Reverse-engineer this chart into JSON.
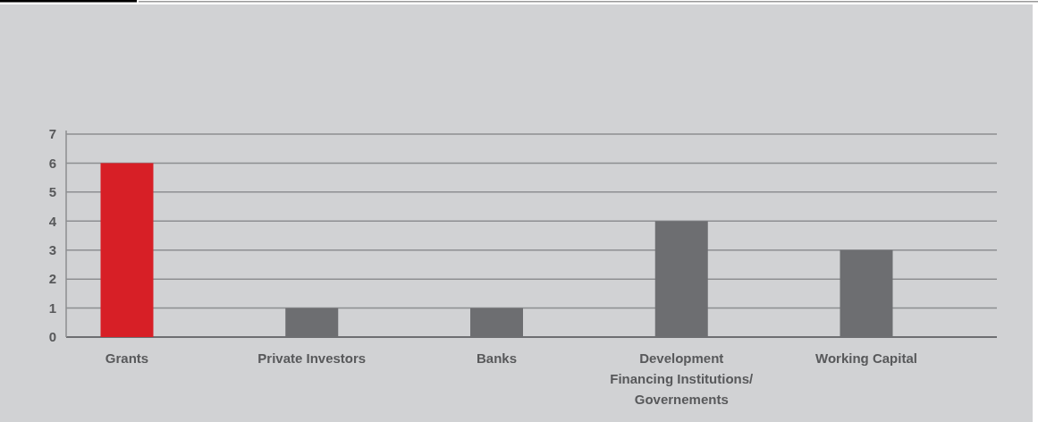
{
  "chart_data": {
    "type": "bar",
    "categories": [
      "Grants",
      "Private Investors",
      "Banks",
      "Development Financing Institutions/ Governements",
      "Working Capital"
    ],
    "values": [
      6,
      1,
      1,
      4,
      3
    ],
    "colors": [
      "#d71f26",
      "#6d6e71",
      "#6d6e71",
      "#6d6e71",
      "#6d6e71"
    ],
    "ylim": [
      0,
      7
    ],
    "yticks": [
      0,
      1,
      2,
      3,
      4,
      5,
      6,
      7
    ],
    "grid": "y"
  }
}
